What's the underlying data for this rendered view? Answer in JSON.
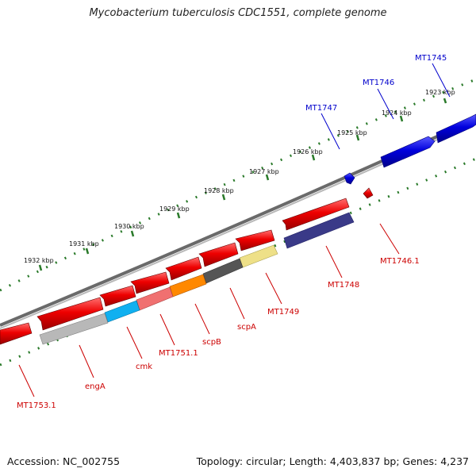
{
  "title": "Mycobacterium tuberculosis CDC1551, complete genome",
  "footer": {
    "accession": "Accession: NC_002755",
    "stats": "Topology: circular; Length: 4,403,837 bp; Genes: 4,237"
  },
  "colors": {
    "backbone": "#8a8a8a",
    "ruler_ticks": "#2a7a2a",
    "forward_genes": "#0000cc",
    "reverse_genes": "#cc0000",
    "labels_forward": "#0000cc",
    "labels_reverse": "#cc0000"
  },
  "ruler_labels": [
    "1923 kbp",
    "1924 kbp",
    "1925 kbp",
    "1926 kbp",
    "1927 kbp",
    "1928 kbp",
    "1929 kbp",
    "1930 kbp",
    "1931 kbp",
    "1932 kbp"
  ],
  "genes": {
    "forward": [
      {
        "label": "MT1745",
        "color": "#0000dd"
      },
      {
        "label": "MT1746",
        "color": "#0000dd"
      },
      {
        "label": "MT1747",
        "color": "#0000dd"
      }
    ],
    "reverse": [
      {
        "label": "MT1746.1",
        "color": "#ee0000"
      },
      {
        "label": "MT1748",
        "color": "#ee0000"
      },
      {
        "label": "MT1749",
        "color": "#ee0000"
      },
      {
        "label": "scpA",
        "color": "#ee0000"
      },
      {
        "label": "scpB",
        "color": "#ee0000"
      },
      {
        "label": "MT1751.1",
        "color": "#ee0000"
      },
      {
        "label": "cmk",
        "color": "#ee0000"
      },
      {
        "label": "engA",
        "color": "#ee0000"
      },
      {
        "label": "MT1753.1",
        "color": "#ee0000"
      }
    ]
  }
}
